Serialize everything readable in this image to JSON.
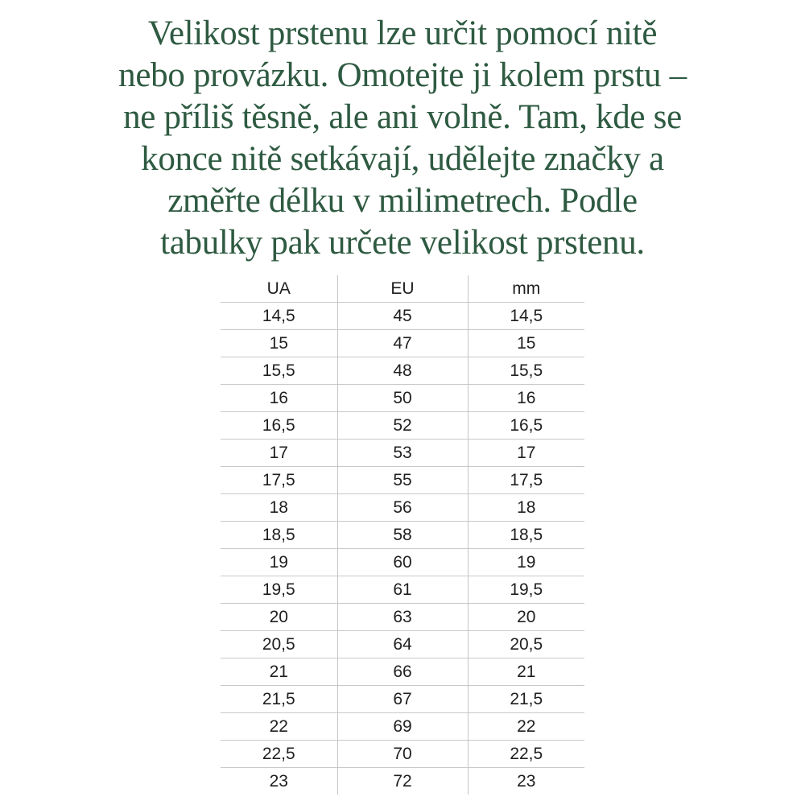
{
  "intro": {
    "full_text": "Velikost prstenu lze určit pomocí nitě nebo provázku. Omotejte ji kolem prstu – ne příliš těsně, ale ani volně. Tam, kde se konce nitě setkávají, udělejte značky a změřte délku v milimetrech. Podle tabulky pak určete velikost prstenu.",
    "lines": [
      "Velikost prstenu lze určit pomocí nitě",
      "nebo provázku. Omotejte ji kolem prstu –",
      "ne příliš těsně, ale ani volně. Tam, kde se",
      "konce nitě setkávají, udělejte značky a",
      "změřte délku v milimetrech. Podle",
      "tabulky pak určete velikost prstenu."
    ]
  },
  "table": {
    "columns": [
      "UA",
      "EU",
      "mm"
    ],
    "rows": [
      [
        "14,5",
        "45",
        "14,5"
      ],
      [
        "15",
        "47",
        "15"
      ],
      [
        "15,5",
        "48",
        "15,5"
      ],
      [
        "16",
        "50",
        "16"
      ],
      [
        "16,5",
        "52",
        "16,5"
      ],
      [
        "17",
        "53",
        "17"
      ],
      [
        "17,5",
        "55",
        "17,5"
      ],
      [
        "18",
        "56",
        "18"
      ],
      [
        "18,5",
        "58",
        "18,5"
      ],
      [
        "19",
        "60",
        "19"
      ],
      [
        "19,5",
        "61",
        "19,5"
      ],
      [
        "20",
        "63",
        "20"
      ],
      [
        "20,5",
        "64",
        "20,5"
      ],
      [
        "21",
        "66",
        "21"
      ],
      [
        "21,5",
        "67",
        "21,5"
      ],
      [
        "22",
        "69",
        "22"
      ],
      [
        "22,5",
        "70",
        "22,5"
      ],
      [
        "23",
        "72",
        "23"
      ]
    ]
  },
  "colors": {
    "heading_text": "#2e5a41",
    "table_text": "#1f1f1f",
    "grid_line": "#c9c9c9",
    "background": "#ffffff"
  }
}
